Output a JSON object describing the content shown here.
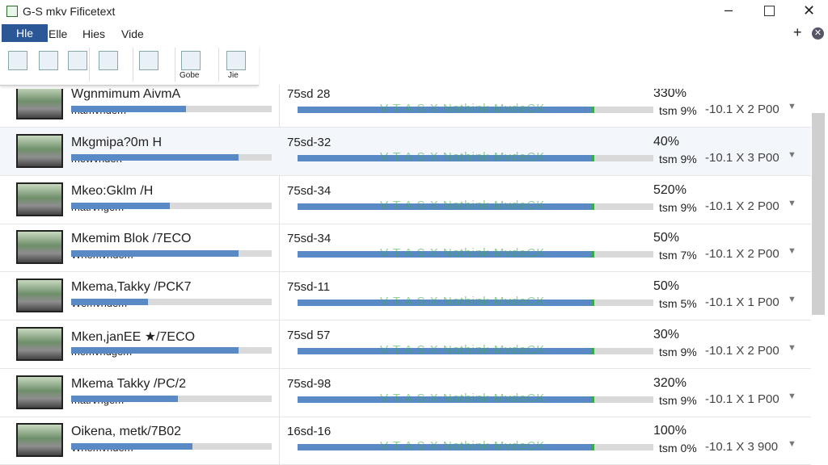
{
  "window": {
    "title": "G-S mkv Fificetext"
  },
  "menu": [
    "Hle",
    "Elle",
    "Hies",
    "Vide"
  ],
  "toolbar": {
    "labels": [
      "Gobe",
      "Jie"
    ]
  },
  "overlay_text": "V T A S X Nothink MvdeCK",
  "rows": [
    {
      "name": "Wgnmimum AivmA",
      "sub": "mamvndem",
      "code": "75sd 28",
      "percent": "330%",
      "rate": "tsm 9%",
      "size": "-10.1 X 2 P00"
    },
    {
      "name": "Mkgmipa?0m H",
      "sub": "mewvnden",
      "code": "75sd-32",
      "percent": "40%",
      "rate": "tsm 9%",
      "size": "-10.1 X 3 P00"
    },
    {
      "name": "Mkeo:Gklm /H",
      "sub": "matrvngem",
      "code": "75sd-34",
      "percent": "520%",
      "rate": "tsm 9%",
      "size": "-10.1 X 2 P00"
    },
    {
      "name": "Mkemim Blok /7ECO",
      "sub": "Whemvndem",
      "code": "75sd-34",
      "percent": "50%",
      "rate": "tsm 7%",
      "size": "-10.1 X 2 P00"
    },
    {
      "name": "Mkema,Takky /PCK7",
      "sub": "Wemvndem",
      "code": "75sd-11",
      "percent": "50%",
      "rate": "tsm 5%",
      "size": "-10.1 X 1 P00"
    },
    {
      "name": "Mken,janEE ★/7ECO",
      "sub": "memvndgem",
      "code": "75sd 57",
      "percent": "30%",
      "rate": "tsm 9%",
      "size": "-10.1 X 2 P00"
    },
    {
      "name": "Mkema Takky /PC/2",
      "sub": "matrvngem",
      "code": "75sd-98",
      "percent": "320%",
      "rate": "tsm 9%",
      "size": "-10.1 X 1 P00"
    },
    {
      "name": "Oikena, metk/7B02",
      "sub": "Whemvndem",
      "code": "16sd-16",
      "percent": "100%",
      "rate": "tsm 0%",
      "size": "-10.1 X 3 900"
    }
  ]
}
